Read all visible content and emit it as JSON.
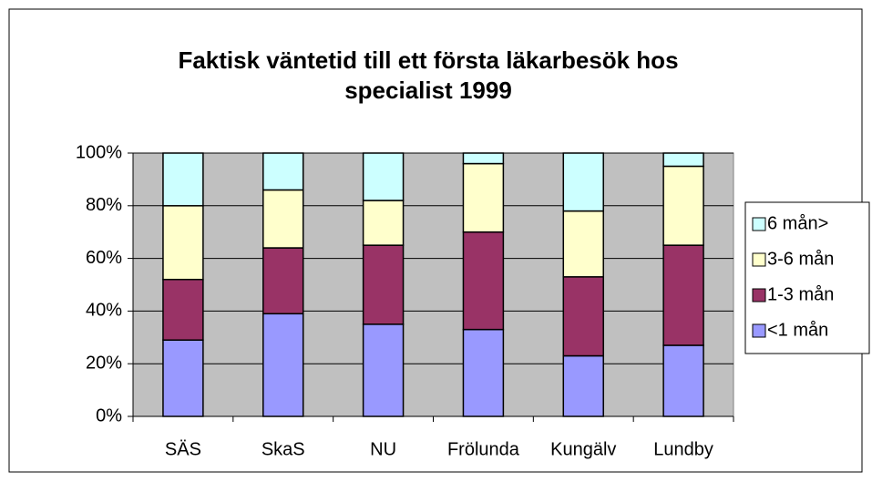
{
  "chart_data": {
    "type": "stacked_bar",
    "title": "Faktisk väntetid till ett första läkarbesök hos specialist 1999",
    "categories": [
      "SÄS",
      "SkaS",
      "NU",
      "Frölunda",
      "Kungälv",
      "Lundby"
    ],
    "series": [
      {
        "name": "<1 mån",
        "color": "#9999ff",
        "values": [
          29,
          39,
          35,
          33,
          23,
          27
        ]
      },
      {
        "name": "1-3 mån",
        "color": "#993366",
        "values": [
          23,
          25,
          30,
          37,
          30,
          38
        ]
      },
      {
        "name": "3-6 mån",
        "color": "#ffffcc",
        "values": [
          28,
          22,
          17,
          26,
          25,
          30
        ]
      },
      {
        "name": "6 mån>",
        "color": "#ccffff",
        "values": [
          20,
          14,
          18,
          4,
          22,
          5
        ]
      }
    ],
    "ylim": [
      0,
      100
    ],
    "yticks": [
      {
        "value": 0,
        "label": "0%"
      },
      {
        "value": 20,
        "label": "20%"
      },
      {
        "value": 40,
        "label": "40%"
      },
      {
        "value": 60,
        "label": "60%"
      },
      {
        "value": 80,
        "label": "80%"
      },
      {
        "value": 100,
        "label": "100%"
      }
    ],
    "grid": true,
    "legend": "right",
    "plot_background": "#c0c0c0"
  }
}
